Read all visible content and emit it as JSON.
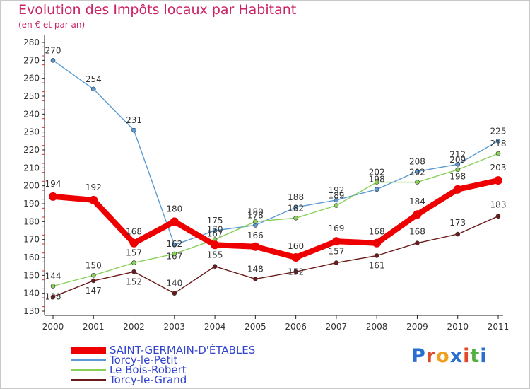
{
  "header": {
    "title": "Evolution des Impôts locaux par Habitant",
    "subtitle": "(en € et par an)"
  },
  "logo": {
    "text": "Proxiti",
    "letters": [
      "P",
      "r",
      "o",
      "x",
      "i",
      "t",
      "i"
    ],
    "colors": [
      "#2a6fd0",
      "#e04a2a",
      "#f0a020",
      "#2a6fd0",
      "#e04a2a",
      "#50b040",
      "#2a6fd0"
    ]
  },
  "chart_data": {
    "type": "line",
    "title": "Evolution des Impôts locaux par Habitant",
    "subtitle": "(en € et par an)",
    "xlabel": "",
    "ylabel": "",
    "ylim": [
      130,
      280
    ],
    "yticks": [
      "130",
      "140",
      "150",
      "160",
      "170",
      "180",
      "190",
      "200",
      "210",
      "220",
      "230",
      "240",
      "250",
      "260",
      "270",
      "280"
    ],
    "categories": [
      "2000",
      "2001",
      "2002",
      "2003",
      "2004",
      "2005",
      "2006",
      "2007",
      "2008",
      "2009",
      "2010",
      "2011"
    ],
    "grid": false,
    "legend_position": "bottom-left",
    "series": [
      {
        "name": "SAINT-GERMAIN-D'ÉTABLES",
        "values": [
          194,
          192,
          168,
          180,
          167,
          166,
          160,
          169,
          168,
          184,
          198,
          203
        ],
        "labels": [
          "194",
          "192",
          "168",
          "180",
          "167",
          "166",
          "160",
          "169",
          "168",
          "184",
          "198",
          "203"
        ],
        "color": "#ee0000",
        "highlight": true
      },
      {
        "name": "Torcy-le-Petit",
        "values": [
          270,
          254,
          231,
          167,
          175,
          178,
          188,
          192,
          198,
          208,
          212,
          225
        ],
        "labels": [
          "270",
          "254",
          "231",
          "167",
          "175",
          "178",
          "188",
          "192",
          "198",
          "208",
          "212",
          "225"
        ],
        "color": "#5b9bd5",
        "highlight": false
      },
      {
        "name": "Le Bois-Robert",
        "values": [
          144,
          150,
          157,
          162,
          170,
          180,
          182,
          189,
          202,
          202,
          209,
          218
        ],
        "labels": [
          "144",
          "150",
          "157",
          "162",
          "170",
          "180",
          "182",
          "189",
          "202",
          "202",
          "209",
          "218"
        ],
        "color": "#88d058",
        "highlight": false
      },
      {
        "name": "Torcy-le-Grand",
        "values": [
          138,
          147,
          152,
          140,
          155,
          148,
          152,
          157,
          161,
          168,
          173,
          183
        ],
        "labels": [
          "138",
          "147",
          "152",
          "140",
          "155",
          "148",
          "152",
          "157",
          "161",
          "168",
          "173",
          "183"
        ],
        "color": "#6b1a1a",
        "highlight": false
      }
    ]
  }
}
